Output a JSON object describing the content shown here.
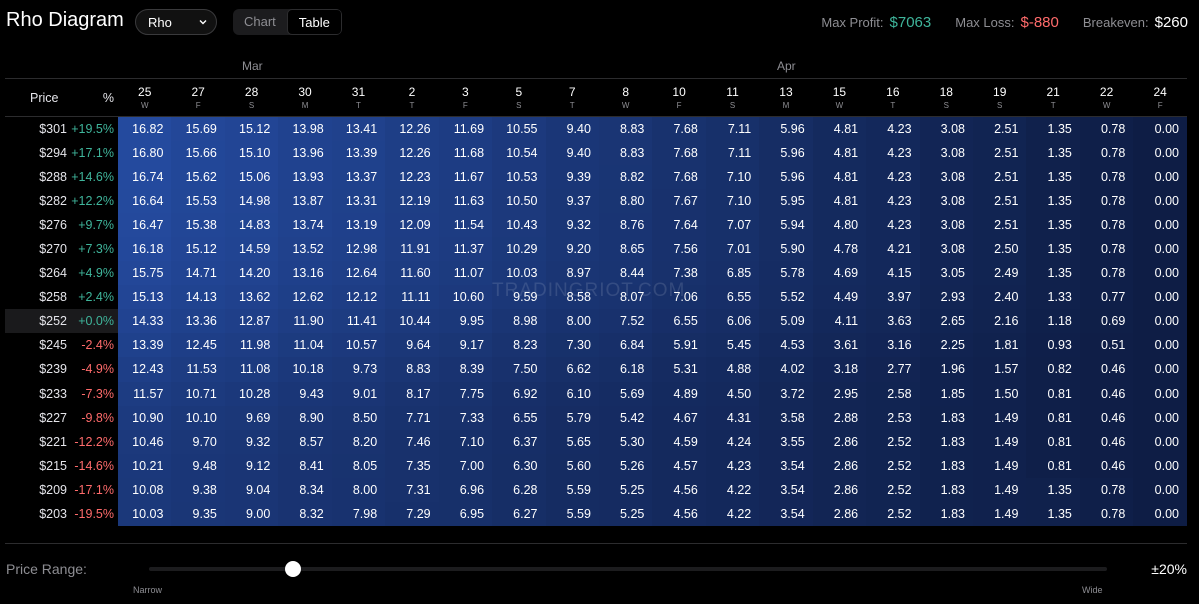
{
  "header": {
    "title": "Rho Diagram",
    "greek_select": "Rho",
    "view_tabs": [
      "Chart",
      "Table"
    ],
    "active_tab": "Table",
    "max_profit_label": "Max Profit:",
    "max_profit_value": "$7063",
    "max_loss_label": "Max Loss:",
    "max_loss_value": "$-880",
    "breakeven_label": "Breakeven:",
    "breakeven_value": "$260"
  },
  "table": {
    "months": [
      "Mar",
      "Apr"
    ],
    "price_header": "Price",
    "pct_header": "%",
    "dates": [
      {
        "day": "25",
        "wd": "W"
      },
      {
        "day": "27",
        "wd": "F"
      },
      {
        "day": "28",
        "wd": "S"
      },
      {
        "day": "30",
        "wd": "M"
      },
      {
        "day": "31",
        "wd": "T"
      },
      {
        "day": "2",
        "wd": "T"
      },
      {
        "day": "3",
        "wd": "F"
      },
      {
        "day": "5",
        "wd": "S"
      },
      {
        "day": "7",
        "wd": "T"
      },
      {
        "day": "8",
        "wd": "W"
      },
      {
        "day": "10",
        "wd": "F"
      },
      {
        "day": "11",
        "wd": "S"
      },
      {
        "day": "13",
        "wd": "M"
      },
      {
        "day": "15",
        "wd": "W"
      },
      {
        "day": "16",
        "wd": "T"
      },
      {
        "day": "18",
        "wd": "S"
      },
      {
        "day": "19",
        "wd": "S"
      },
      {
        "day": "21",
        "wd": "T"
      },
      {
        "day": "22",
        "wd": "W"
      },
      {
        "day": "24",
        "wd": "F"
      }
    ],
    "rows": [
      {
        "price": "$301",
        "pct": "+19.5%",
        "values": [
          "16.82",
          "15.69",
          "15.12",
          "13.98",
          "13.41",
          "12.26",
          "11.69",
          "10.55",
          "9.40",
          "8.83",
          "7.68",
          "7.11",
          "5.96",
          "4.81",
          "4.23",
          "3.08",
          "2.51",
          "1.35",
          "0.78",
          "0.00"
        ]
      },
      {
        "price": "$294",
        "pct": "+17.1%",
        "values": [
          "16.80",
          "15.66",
          "15.10",
          "13.96",
          "13.39",
          "12.26",
          "11.68",
          "10.54",
          "9.40",
          "8.83",
          "7.68",
          "7.11",
          "5.96",
          "4.81",
          "4.23",
          "3.08",
          "2.51",
          "1.35",
          "0.78",
          "0.00"
        ]
      },
      {
        "price": "$288",
        "pct": "+14.6%",
        "values": [
          "16.74",
          "15.62",
          "15.06",
          "13.93",
          "13.37",
          "12.23",
          "11.67",
          "10.53",
          "9.39",
          "8.82",
          "7.68",
          "7.10",
          "5.96",
          "4.81",
          "4.23",
          "3.08",
          "2.51",
          "1.35",
          "0.78",
          "0.00"
        ]
      },
      {
        "price": "$282",
        "pct": "+12.2%",
        "values": [
          "16.64",
          "15.53",
          "14.98",
          "13.87",
          "13.31",
          "12.19",
          "11.63",
          "10.50",
          "9.37",
          "8.80",
          "7.67",
          "7.10",
          "5.95",
          "4.81",
          "4.23",
          "3.08",
          "2.51",
          "1.35",
          "0.78",
          "0.00"
        ]
      },
      {
        "price": "$276",
        "pct": "+9.7%",
        "values": [
          "16.47",
          "15.38",
          "14.83",
          "13.74",
          "13.19",
          "12.09",
          "11.54",
          "10.43",
          "9.32",
          "8.76",
          "7.64",
          "7.07",
          "5.94",
          "4.80",
          "4.23",
          "3.08",
          "2.51",
          "1.35",
          "0.78",
          "0.00"
        ]
      },
      {
        "price": "$270",
        "pct": "+7.3%",
        "values": [
          "16.18",
          "15.12",
          "14.59",
          "13.52",
          "12.98",
          "11.91",
          "11.37",
          "10.29",
          "9.20",
          "8.65",
          "7.56",
          "7.01",
          "5.90",
          "4.78",
          "4.21",
          "3.08",
          "2.50",
          "1.35",
          "0.78",
          "0.00"
        ]
      },
      {
        "price": "$264",
        "pct": "+4.9%",
        "values": [
          "15.75",
          "14.71",
          "14.20",
          "13.16",
          "12.64",
          "11.60",
          "11.07",
          "10.03",
          "8.97",
          "8.44",
          "7.38",
          "6.85",
          "5.78",
          "4.69",
          "4.15",
          "3.05",
          "2.49",
          "1.35",
          "0.78",
          "0.00"
        ]
      },
      {
        "price": "$258",
        "pct": "+2.4%",
        "values": [
          "15.13",
          "14.13",
          "13.62",
          "12.62",
          "12.12",
          "11.11",
          "10.60",
          "9.59",
          "8.58",
          "8.07",
          "7.06",
          "6.55",
          "5.52",
          "4.49",
          "3.97",
          "2.93",
          "2.40",
          "1.33",
          "0.77",
          "0.00"
        ]
      },
      {
        "price": "$252",
        "pct": "+0.0%",
        "values": [
          "14.33",
          "13.36",
          "12.87",
          "11.90",
          "11.41",
          "10.44",
          "9.95",
          "8.98",
          "8.00",
          "7.52",
          "6.55",
          "6.06",
          "5.09",
          "4.11",
          "3.63",
          "2.65",
          "2.16",
          "1.18",
          "0.69",
          "0.00"
        ]
      },
      {
        "price": "$245",
        "pct": "-2.4%",
        "values": [
          "13.39",
          "12.45",
          "11.98",
          "11.04",
          "10.57",
          "9.64",
          "9.17",
          "8.23",
          "7.30",
          "6.84",
          "5.91",
          "5.45",
          "4.53",
          "3.61",
          "3.16",
          "2.25",
          "1.81",
          "0.93",
          "0.51",
          "0.00"
        ]
      },
      {
        "price": "$239",
        "pct": "-4.9%",
        "values": [
          "12.43",
          "11.53",
          "11.08",
          "10.18",
          "9.73",
          "8.83",
          "8.39",
          "7.50",
          "6.62",
          "6.18",
          "5.31",
          "4.88",
          "4.02",
          "3.18",
          "2.77",
          "1.96",
          "1.57",
          "0.82",
          "0.46",
          "0.00"
        ]
      },
      {
        "price": "$233",
        "pct": "-7.3%",
        "values": [
          "11.57",
          "10.71",
          "10.28",
          "9.43",
          "9.01",
          "8.17",
          "7.75",
          "6.92",
          "6.10",
          "5.69",
          "4.89",
          "4.50",
          "3.72",
          "2.95",
          "2.58",
          "1.85",
          "1.50",
          "0.81",
          "0.46",
          "0.00"
        ]
      },
      {
        "price": "$227",
        "pct": "-9.8%",
        "values": [
          "10.90",
          "10.10",
          "9.69",
          "8.90",
          "8.50",
          "7.71",
          "7.33",
          "6.55",
          "5.79",
          "5.42",
          "4.67",
          "4.31",
          "3.58",
          "2.88",
          "2.53",
          "1.83",
          "1.49",
          "0.81",
          "0.46",
          "0.00"
        ]
      },
      {
        "price": "$221",
        "pct": "-12.2%",
        "values": [
          "10.46",
          "9.70",
          "9.32",
          "8.57",
          "8.20",
          "7.46",
          "7.10",
          "6.37",
          "5.65",
          "5.30",
          "4.59",
          "4.24",
          "3.55",
          "2.86",
          "2.52",
          "1.83",
          "1.49",
          "0.81",
          "0.46",
          "0.00"
        ]
      },
      {
        "price": "$215",
        "pct": "-14.6%",
        "values": [
          "10.21",
          "9.48",
          "9.12",
          "8.41",
          "8.05",
          "7.35",
          "7.00",
          "6.30",
          "5.60",
          "5.26",
          "4.57",
          "4.23",
          "3.54",
          "2.86",
          "2.52",
          "1.83",
          "1.49",
          "0.81",
          "0.46",
          "0.00"
        ]
      },
      {
        "price": "$209",
        "pct": "-17.1%",
        "values": [
          "10.08",
          "9.38",
          "9.04",
          "8.34",
          "8.00",
          "7.31",
          "6.96",
          "6.28",
          "5.59",
          "5.25",
          "4.56",
          "4.22",
          "3.54",
          "2.86",
          "2.52",
          "1.83",
          "1.49",
          "1.35",
          "0.78",
          "0.00"
        ]
      },
      {
        "price": "$203",
        "pct": "-19.5%",
        "values": [
          "10.03",
          "9.35",
          "9.00",
          "8.32",
          "7.98",
          "7.29",
          "6.95",
          "6.27",
          "5.59",
          "5.25",
          "4.56",
          "4.22",
          "3.54",
          "2.86",
          "2.52",
          "1.83",
          "1.49",
          "1.35",
          "0.78",
          "0.00"
        ]
      }
    ],
    "current_row": 8
  },
  "footer": {
    "price_range_label": "Price Range:",
    "slider_value": 0.15,
    "narrow_label": "Narrow",
    "wide_label": "Wide",
    "range_value": "±20%"
  },
  "watermark": "TRADINGRIOT.COM",
  "colors": {
    "positive": "#3fb59b",
    "negative": "#ff6b6b",
    "heat_low": "#0a1535",
    "heat_high": "#244a9e"
  }
}
